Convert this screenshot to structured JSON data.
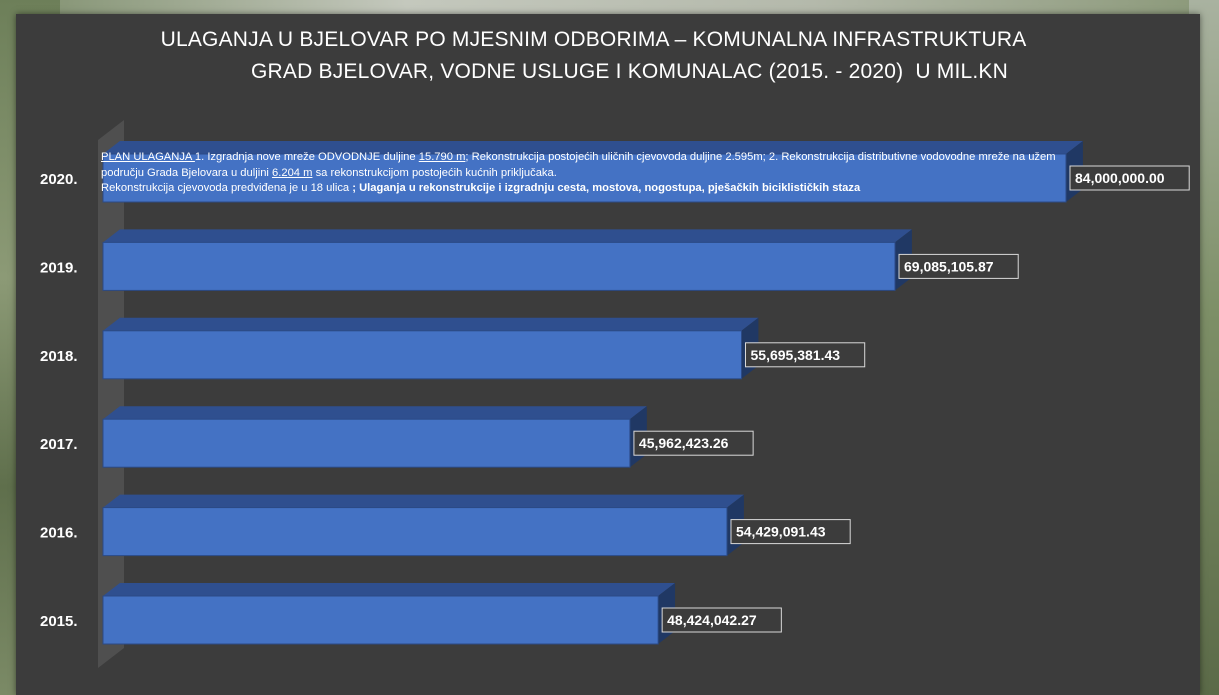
{
  "chart_data": {
    "type": "bar",
    "orientation": "horizontal",
    "title_line1": "ULAGANJA U BJELOVAR PO MJESNIM ODBORIMA – KOMUNALNA INFRASTRUKTURA",
    "title_line2": "GRAD BJELOVAR, VODNE USLUGE I KOMUNALAC (2015. - 2020)  U MIL.KN",
    "categories": [
      "2020.",
      "2019.",
      "2018.",
      "2017.",
      "2016.",
      "2015."
    ],
    "values": [
      84000000.0,
      69085105.87,
      55695381.43,
      45962423.26,
      54429091.43,
      48424042.27
    ],
    "value_labels": [
      "84,000,000.00",
      "69,085,105.87",
      "55,695,381.43",
      "45,962,423.26",
      "54,429,091.43",
      "48,424,042.27"
    ],
    "xlim": [
      0,
      84000000
    ],
    "bar_color": "#4472c4",
    "bar_top_color": "#2f4f8f",
    "bar_side_color": "#203864",
    "grid": false,
    "legend": "none",
    "annotation": {
      "p1_a": "PLAN ULAGANJA ",
      "p1_b": " 1. Izgradnja nove mreže ODVODNJE duljine ",
      "p1_c": "15.790 m",
      "p1_d": "; Rekonstrukcija postojećih uličnih cjevovoda duljine 2.595m; 2. Rekonstrukcija distributivne vodovodne mreže na užem području Grada Bjelovara u duljini ",
      "p1_e": "6.204 m",
      "p1_f": " sa rekonstrukcijom postojećih kućnih priključaka.",
      "p2_a": "Rekonstrukcija cjevovoda predviđena je u  18 ulica ",
      "p2_b": "; Ulaganja u rekonstrukcije i izgradnju cesta, mostova, nogostupa, pješačkih biciklističkih staza"
    }
  }
}
